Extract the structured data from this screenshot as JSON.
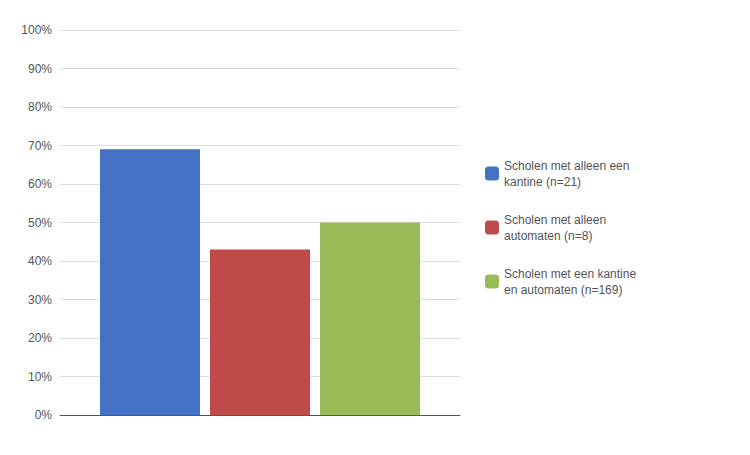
{
  "chart_data": {
    "type": "bar",
    "categories": [
      null
    ],
    "series": [
      {
        "name": "Scholen met alleen een\nkantine (n=21)",
        "color": "#4472C4",
        "values": [
          0.69
        ]
      },
      {
        "name": "Scholen met alleen\nautomaten (n=8)",
        "color": "#BE4B48",
        "values": [
          0.43
        ]
      },
      {
        "name": "Scholen met een kantine\nen automaten (n=169)",
        "color": "#9BBB59",
        "values": [
          0.5
        ]
      }
    ],
    "ylim": [
      0,
      1.0
    ],
    "yticks": [
      {
        "value": 0.0,
        "label": "0%"
      },
      {
        "value": 0.1,
        "label": "10%"
      },
      {
        "value": 0.2,
        "label": "20%"
      },
      {
        "value": 0.3,
        "label": "30%"
      },
      {
        "value": 0.4,
        "label": "40%"
      },
      {
        "value": 0.5,
        "label": "50%"
      },
      {
        "value": 0.6,
        "label": "60%"
      },
      {
        "value": 0.7,
        "label": "70%"
      },
      {
        "value": 0.8,
        "label": "80%"
      },
      {
        "value": 0.9,
        "label": "90%"
      },
      {
        "value": 1.0,
        "label": "100%"
      }
    ],
    "grid": true,
    "legend": "right",
    "tick_labels": "y"
  }
}
